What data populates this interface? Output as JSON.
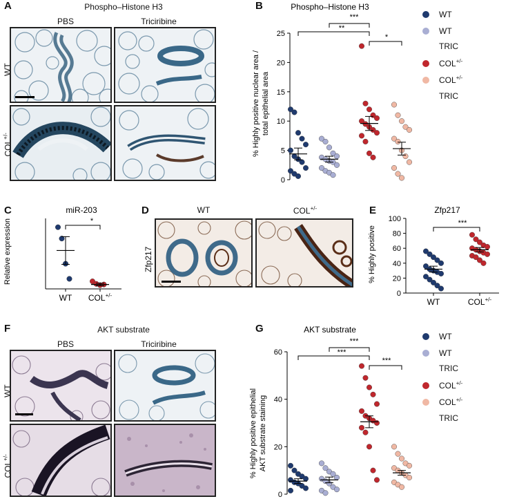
{
  "colors": {
    "wt": "#1f3a6e",
    "wt_tric": "#a9aed3",
    "col": "#c0272d",
    "col_tric": "#f0b8a4",
    "tissue_fat": "#e9eef2",
    "he_stain": "#3f6a8a",
    "dab_brown": "#5a2e18",
    "akt_purple": "#c9b6c9"
  },
  "panel_A": {
    "letter": "A",
    "title": "Phospho–Histone H3",
    "col_labels": [
      "PBS",
      "Triciribine"
    ],
    "row_labels": [
      "WT",
      "COL",
      "+/-"
    ]
  },
  "panel_B": {
    "letter": "B",
    "title": "Phospho–Histone H3",
    "ylabel_line1": "% Highly positive nuclear area /",
    "ylabel_line2": "total epithelial area",
    "sig": [
      "***",
      "**",
      "*"
    ]
  },
  "panel_C": {
    "letter": "C",
    "title": "miR-203",
    "ylabel": "Relative expression",
    "sig": "*"
  },
  "panel_D": {
    "letter": "D",
    "col_labels": [
      "WT",
      "COL",
      "+/-"
    ],
    "row_label": "Zfp217"
  },
  "panel_E": {
    "letter": "E",
    "title": "Zfp217",
    "ylabel": "% Highly positive",
    "sig": "***"
  },
  "panel_F": {
    "letter": "F",
    "title": "AKT substrate",
    "col_labels": [
      "PBS",
      "Triciribine"
    ],
    "row_labels": [
      "WT",
      "COL",
      "+/-"
    ]
  },
  "panel_G": {
    "letter": "G",
    "title": "AKT substrate",
    "ylabel_line1": "% Highly positive epithelial",
    "ylabel_line2": "AKT substrate staining",
    "sig": [
      "***",
      "***",
      "***"
    ]
  },
  "legend": {
    "items": [
      {
        "label": "WT",
        "sup": "",
        "sub": "",
        "color": "wt"
      },
      {
        "label": "WT",
        "sup": "",
        "sub": "TRIC",
        "color": "wt_tric"
      },
      {
        "label": "COL",
        "sup": "+/-",
        "sub": "",
        "color": "col"
      },
      {
        "label": "COL",
        "sup": "+/-",
        "sub": "TRIC",
        "color": "col_tric"
      }
    ]
  },
  "chart_data": [
    {
      "id": "B",
      "type": "scatter",
      "title": "Phospho–Histone H3",
      "ylabel": "% Highly positive nuclear area / total epithelial area",
      "ylim": [
        0,
        25
      ],
      "yticks": [
        0,
        5,
        10,
        15,
        20,
        25
      ],
      "series": [
        {
          "name": "WT",
          "color": "wt",
          "mean": 4.4,
          "sem": 1.0,
          "values": [
            12.0,
            11.5,
            8.0,
            7.0,
            6.0,
            5.0,
            4.0,
            3.5,
            3.0,
            2.0,
            1.5,
            1.0,
            0.6
          ]
        },
        {
          "name": "WT TRIC",
          "color": "wt_tric",
          "mean": 3.5,
          "sem": 0.5,
          "values": [
            7.0,
            6.5,
            5.5,
            4.5,
            4.0,
            3.8,
            3.5,
            3.2,
            3.0,
            2.5,
            2.0,
            1.5,
            1.2,
            0.8
          ]
        },
        {
          "name": "COL+/- ",
          "color": "col",
          "mean": 9.6,
          "sem": 1.2,
          "values": [
            22.8,
            13.0,
            12.0,
            11.0,
            10.5,
            10.0,
            9.5,
            9.0,
            8.5,
            8.0,
            7.5,
            6.5,
            4.5,
            3.8
          ]
        },
        {
          "name": "COL+/- TRIC",
          "color": "col_tric",
          "mean": 5.3,
          "sem": 1.1,
          "values": [
            12.8,
            11.0,
            10.0,
            9.0,
            8.5,
            7.0,
            6.5,
            5.0,
            4.0,
            3.0,
            2.0,
            1.0,
            0.3
          ]
        }
      ]
    },
    {
      "id": "C",
      "type": "scatter",
      "title": "miR-203",
      "ylabel": "Relative expression",
      "categories": [
        "WT",
        "COL"
      ],
      "series": [
        {
          "name": "WT",
          "color": "wt",
          "mean": 3.05,
          "sem": 1.1,
          "values": [
            4.9,
            4.0,
            2.0,
            0.8
          ]
        },
        {
          "name": "COL+/- ",
          "color": "col",
          "mean": 0.35,
          "sem": 0.1,
          "values": [
            0.6,
            0.4,
            0.3,
            0.35
          ]
        }
      ]
    },
    {
      "id": "E",
      "type": "scatter",
      "title": "Zfp217",
      "ylabel": "% Highly positive",
      "ylim": [
        0,
        100
      ],
      "yticks": [
        0,
        20,
        40,
        60,
        80,
        100
      ],
      "categories": [
        "WT",
        "COL"
      ],
      "series": [
        {
          "name": "WT",
          "color": "wt",
          "mean": 32,
          "sem": 4,
          "values": [
            56,
            52,
            48,
            44,
            40,
            36,
            32,
            30,
            28,
            26,
            22,
            18,
            14,
            10,
            6
          ]
        },
        {
          "name": "COL+/- ",
          "color": "col",
          "mean": 58,
          "sem": 3,
          "values": [
            78,
            72,
            68,
            64,
            62,
            60,
            58,
            56,
            54,
            52,
            50,
            48,
            44,
            40
          ]
        }
      ]
    },
    {
      "id": "G",
      "type": "scatter",
      "title": "AKT substrate",
      "ylabel": "% Highly positive epithelial AKT substrate staining",
      "ylim": [
        0,
        60
      ],
      "yticks": [
        0,
        20,
        40,
        60
      ],
      "series": [
        {
          "name": "WT",
          "color": "wt",
          "mean": 5.5,
          "sem": 1.0,
          "values": [
            12.0,
            10.0,
            8.5,
            7.5,
            6.5,
            6.0,
            5.0,
            4.5,
            3.5,
            2.5,
            1.5
          ]
        },
        {
          "name": "WT TRIC",
          "color": "wt_tric",
          "mean": 6.0,
          "sem": 1.2,
          "values": [
            13.0,
            11.0,
            9.5,
            8.5,
            7.0,
            6.5,
            5.5,
            4.5,
            3.0,
            2.0,
            1.5,
            0.5
          ]
        },
        {
          "name": "COL+/- ",
          "color": "col",
          "mean": 30.5,
          "sem": 2.5,
          "values": [
            54.0,
            49.0,
            45.0,
            42.0,
            38.0,
            35.0,
            33.0,
            32.0,
            31.0,
            30.0,
            28.0,
            26.0,
            20.0,
            10.0,
            6.0
          ]
        },
        {
          "name": "COL+/- TRIC",
          "color": "col_tric",
          "mean": 9.0,
          "sem": 1.0,
          "values": [
            20.0,
            17.0,
            15.0,
            13.0,
            12.0,
            11.0,
            10.0,
            9.0,
            8.0,
            7.0,
            5.0,
            4.0,
            3.0
          ]
        }
      ]
    }
  ]
}
